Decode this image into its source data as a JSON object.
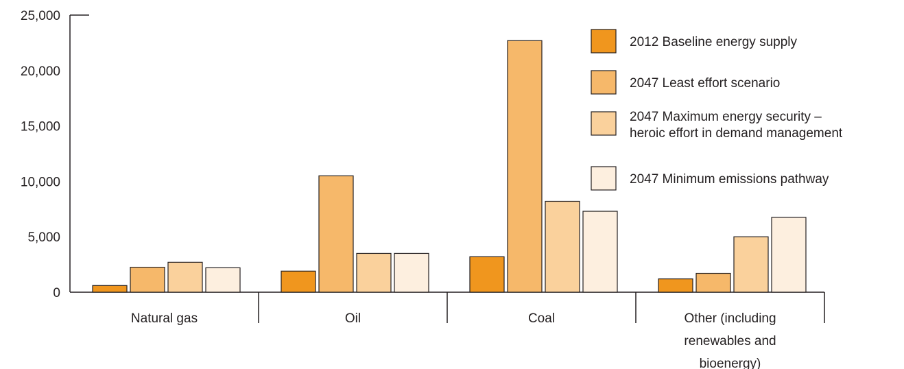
{
  "chart_data": {
    "type": "bar",
    "title": "",
    "xlabel": "",
    "ylabel": "",
    "ylim": [
      0,
      25000
    ],
    "yticks": [
      0,
      5000,
      10000,
      15000,
      20000,
      25000
    ],
    "ytick_labels": [
      "0",
      "5,000",
      "10,000",
      "15,000",
      "20,000",
      "25,000"
    ],
    "categories": [
      [
        "Natural gas"
      ],
      [
        "Oil"
      ],
      [
        "Coal"
      ],
      [
        "Other (including",
        "renewables and",
        "bioenergy)"
      ]
    ],
    "series": [
      {
        "name": [
          "2012 Baseline energy supply"
        ],
        "color": "#f0961e",
        "values": [
          600,
          1900,
          3200,
          1200
        ]
      },
      {
        "name": [
          "2047 Least effort scenario"
        ],
        "color": "#f6b86a",
        "values": [
          2250,
          10500,
          22700,
          1700
        ]
      },
      {
        "name": [
          "2047 Maximum energy security –",
          "heroic effort in demand management"
        ],
        "color": "#fad19c",
        "values": [
          2700,
          3500,
          8200,
          5000
        ]
      },
      {
        "name": [
          "2047 Minimum emissions pathway"
        ],
        "color": "#fdefdf",
        "values": [
          2200,
          3500,
          7300,
          6750
        ]
      }
    ],
    "grid": false,
    "legend_position": "top-right"
  }
}
